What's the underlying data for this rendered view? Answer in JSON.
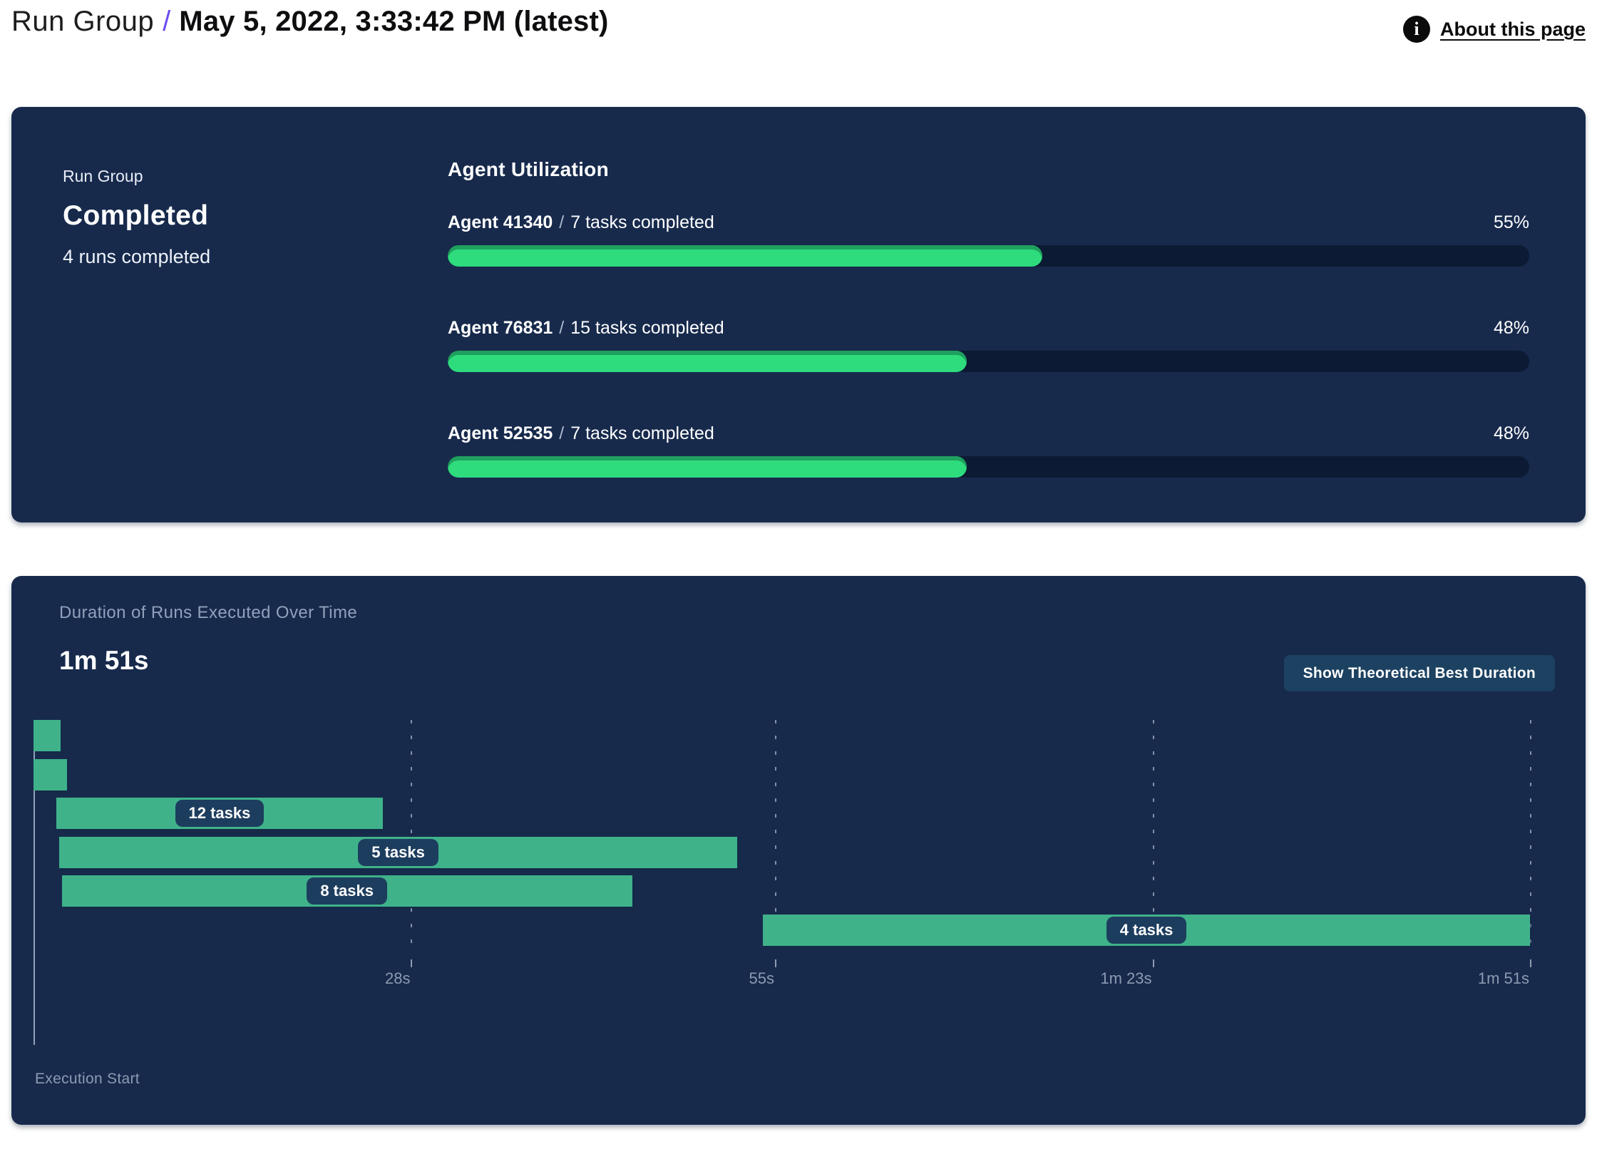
{
  "header": {
    "breadcrumb_root": "Run Group",
    "separator": "/",
    "title": "May 5, 2022, 3:33:42 PM (latest)",
    "info_glyph": "i",
    "about_link": "About this page"
  },
  "summary_panel": {
    "label": "Run Group",
    "status": "Completed",
    "runs_completed": "4 runs completed",
    "section_title": "Agent Utilization",
    "separator": "/",
    "agents": [
      {
        "name": "Agent 41340",
        "tasks": "7 tasks completed",
        "percent": 55,
        "percent_label": "55%"
      },
      {
        "name": "Agent 76831",
        "tasks": "15 tasks completed",
        "percent": 48,
        "percent_label": "48%"
      },
      {
        "name": "Agent 52535",
        "tasks": "7 tasks completed",
        "percent": 48,
        "percent_label": "48%"
      }
    ]
  },
  "duration_panel": {
    "title": "Duration of Runs Executed Over Time",
    "total_duration": "1m 51s",
    "button_label": "Show Theoretical Best Duration",
    "axis_label": "Execution Start"
  },
  "chart_data": {
    "type": "gantt",
    "title": "Duration of Runs Executed Over Time",
    "total_duration_label": "1m 51s",
    "time_domain_seconds": [
      0,
      111
    ],
    "x_ticks": [
      {
        "seconds": 28,
        "label": "28s"
      },
      {
        "seconds": 55,
        "label": "55s"
      },
      {
        "seconds": 83,
        "label": "1m 23s"
      },
      {
        "seconds": 111,
        "label": "1m 51s"
      }
    ],
    "bars": [
      {
        "start_s": 0,
        "end_s": 2.0,
        "label": null
      },
      {
        "start_s": 0,
        "end_s": 2.5,
        "label": null
      },
      {
        "start_s": 1.7,
        "end_s": 25.9,
        "label": "12 tasks"
      },
      {
        "start_s": 1.9,
        "end_s": 52.2,
        "label": "5 tasks"
      },
      {
        "start_s": 2.1,
        "end_s": 44.4,
        "label": "8 tasks"
      },
      {
        "start_s": 54.1,
        "end_s": 111,
        "label": "4 tasks"
      }
    ],
    "axis_start_label": "Execution Start",
    "bar_color": "#3fb28a",
    "label_chip_color": "#1d3d5e",
    "grid": "dashed-vertical",
    "colors": {
      "panel_bg": "#172a4c",
      "progress_fill": "#2edc7e",
      "progress_track": "#0c1a33",
      "accent_purple": "#6c4bf2",
      "tick_text": "#8c9bb2"
    }
  }
}
